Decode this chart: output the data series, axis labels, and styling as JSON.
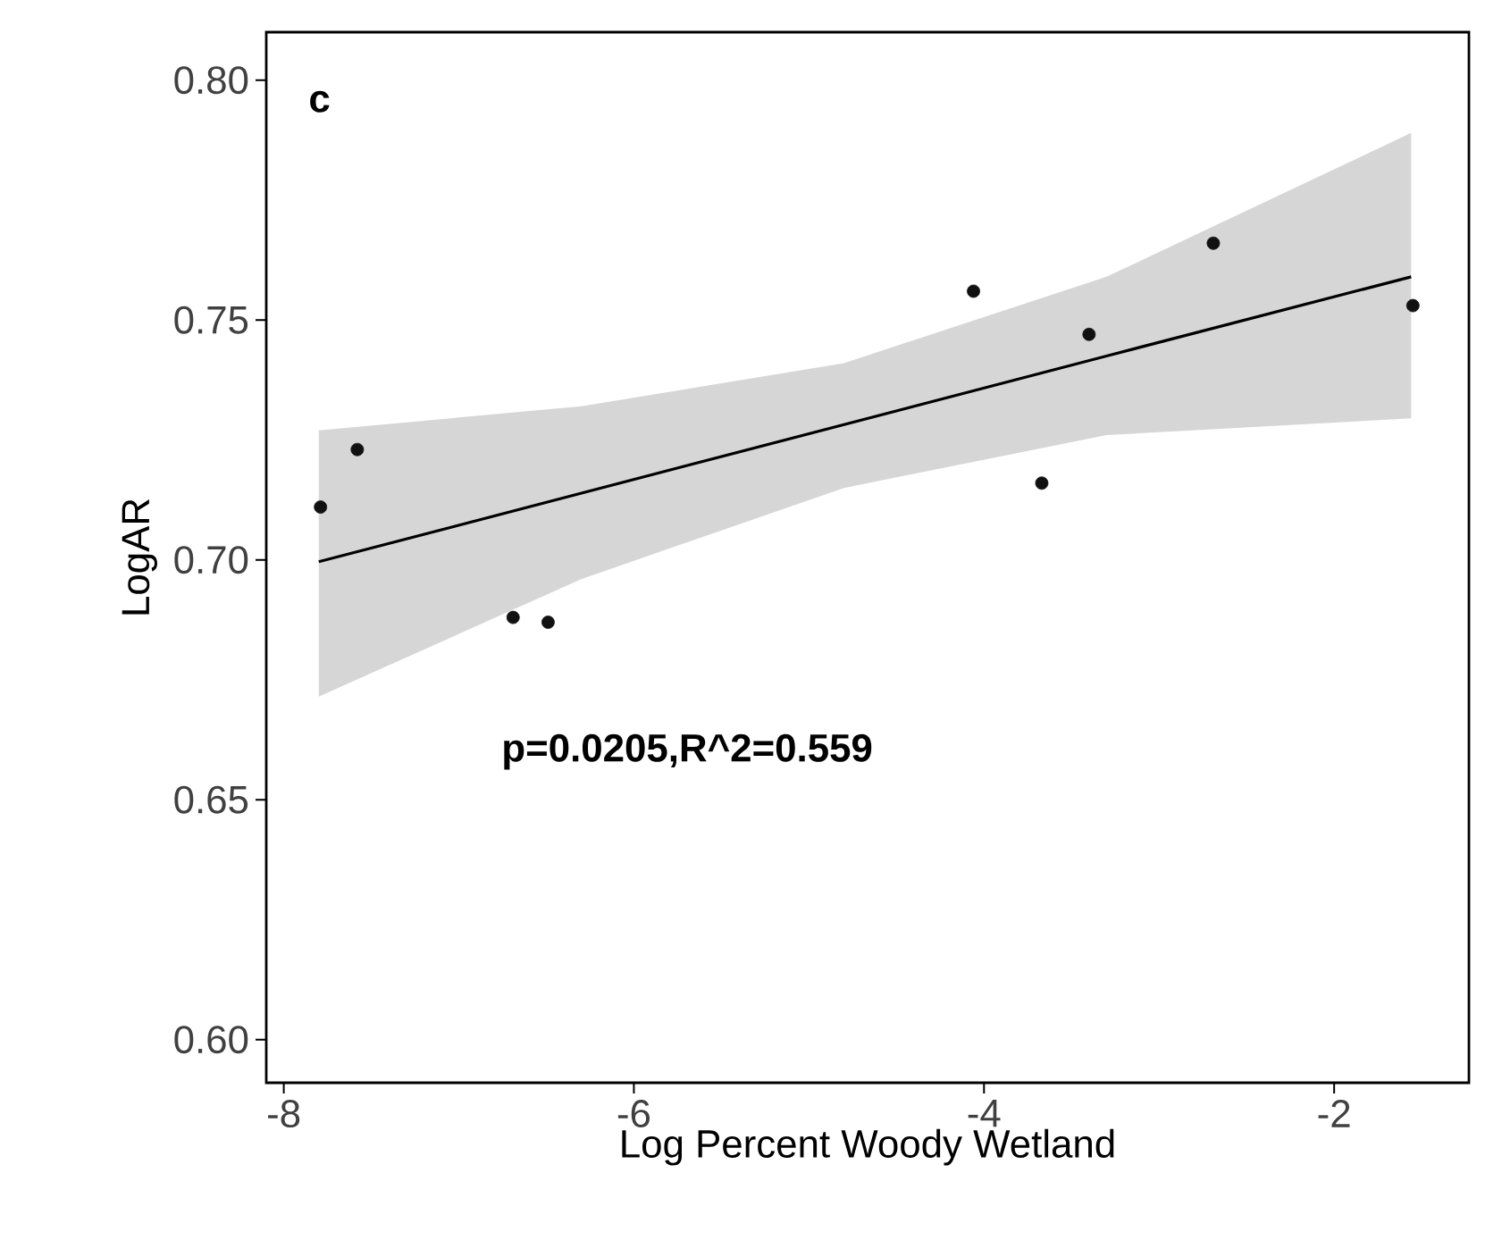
{
  "chart_data": {
    "type": "scatter",
    "xlabel": "Log Percent Woody Wetland",
    "ylabel": "LogAR",
    "xlim": [
      -8.1,
      -1.23
    ],
    "xticks": [
      -8,
      -6,
      -4,
      -2
    ],
    "ylim": [
      0.591,
      0.81
    ],
    "yticks": [
      {
        "value": 0.6,
        "label": "0.60"
      },
      0.65,
      {
        "value": 0.7,
        "label": "0.70"
      },
      0.75,
      {
        "value": 0.8,
        "label": "0.80"
      }
    ],
    "grid": false,
    "series": [
      {
        "marker": "circle",
        "color": "#111111",
        "x": [
          -7.79,
          -7.58,
          -6.69,
          -6.49,
          -4.06,
          -3.67,
          -3.4,
          -2.69,
          -1.55
        ],
        "values": [
          0.711,
          0.723,
          0.688,
          0.687,
          0.756,
          0.716,
          0.747,
          0.766,
          0.753
        ]
      },
      {
        "type": "line",
        "marker": "none",
        "color": "#000000",
        "x": [
          -7.8,
          -6.3,
          -4.8,
          -3.3,
          -1.56
        ],
        "values": [
          0.6996,
          0.7139,
          0.7282,
          0.7425,
          0.759
        ],
        "lower": [
          0.6715,
          0.696,
          0.715,
          0.726,
          0.7295
        ],
        "upper": [
          0.727,
          0.732,
          0.741,
          0.759,
          0.789
        ]
      }
    ],
    "annotations": [
      "c",
      "p=0.0205,R^2=0.559"
    ]
  }
}
